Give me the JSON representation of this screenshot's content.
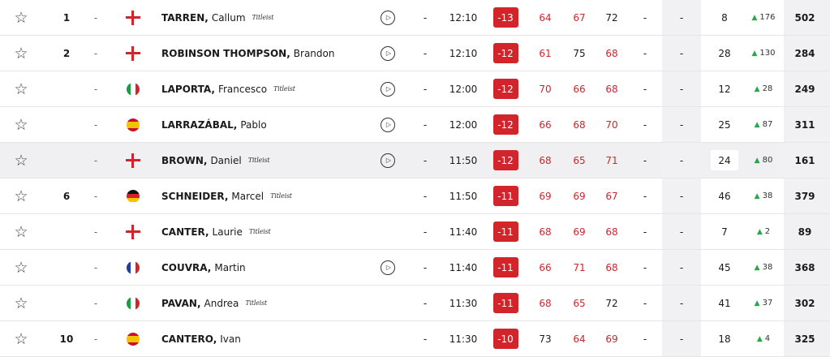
{
  "colors": {
    "score_badge": "#d2242b",
    "under_par": "#d2242b",
    "rank_up": "#27a74a",
    "highlight_row": "#f0f0f2"
  },
  "rows": [
    {
      "pos": "1",
      "move": "-",
      "flag": "england-flag-icon",
      "last": "TARREN,",
      "first": "Callum",
      "sponsor": "Titleist",
      "play": true,
      "thru": "-",
      "time": "12:10",
      "score": "-13",
      "r1": "64",
      "r2": "67",
      "r3": "72",
      "r1_red": true,
      "r2_red": true,
      "r3_red": false,
      "r4": "-",
      "tot": "-",
      "rank": "8",
      "rank_move": "176",
      "points": "502"
    },
    {
      "pos": "2",
      "move": "-",
      "flag": "england-flag-icon",
      "last": "ROBINSON THOMPSON,",
      "first": "Brandon",
      "sponsor": "",
      "play": true,
      "thru": "-",
      "time": "12:10",
      "score": "-12",
      "r1": "61",
      "r2": "75",
      "r3": "68",
      "r1_red": true,
      "r2_red": false,
      "r3_red": true,
      "r4": "-",
      "tot": "-",
      "rank": "28",
      "rank_move": "130",
      "points": "284"
    },
    {
      "pos": "",
      "move": "-",
      "flag": "italy-flag-icon",
      "last": "LAPORTA,",
      "first": "Francesco",
      "sponsor": "Titleist",
      "play": true,
      "thru": "-",
      "time": "12:00",
      "score": "-12",
      "r1": "70",
      "r2": "66",
      "r3": "68",
      "r1_red": true,
      "r2_red": true,
      "r3_red": true,
      "r4": "-",
      "tot": "-",
      "rank": "12",
      "rank_move": "28",
      "points": "249"
    },
    {
      "pos": "",
      "move": "-",
      "flag": "spain-flag-icon",
      "last": "LARRAZÁBAL,",
      "first": "Pablo",
      "sponsor": "",
      "play": true,
      "thru": "-",
      "time": "12:00",
      "score": "-12",
      "r1": "66",
      "r2": "68",
      "r3": "70",
      "r1_red": true,
      "r2_red": true,
      "r3_red": true,
      "r4": "-",
      "tot": "-",
      "rank": "25",
      "rank_move": "87",
      "points": "311"
    },
    {
      "pos": "",
      "move": "-",
      "flag": "england-flag-icon",
      "last": "BROWN,",
      "first": "Daniel",
      "sponsor": "Titleist",
      "play": true,
      "thru": "-",
      "time": "11:50",
      "score": "-12",
      "r1": "68",
      "r2": "65",
      "r3": "71",
      "r1_red": true,
      "r2_red": true,
      "r3_red": true,
      "r4": "-",
      "tot": "-",
      "rank": "24",
      "rank_move": "80",
      "points": "161",
      "highlight": true
    },
    {
      "pos": "6",
      "move": "-",
      "flag": "germany-flag-icon",
      "last": "SCHNEIDER,",
      "first": "Marcel",
      "sponsor": "Titleist",
      "play": false,
      "thru": "-",
      "time": "11:50",
      "score": "-11",
      "r1": "69",
      "r2": "69",
      "r3": "67",
      "r1_red": true,
      "r2_red": true,
      "r3_red": true,
      "r4": "-",
      "tot": "-",
      "rank": "46",
      "rank_move": "38",
      "points": "379"
    },
    {
      "pos": "",
      "move": "-",
      "flag": "england-flag-icon",
      "last": "CANTER,",
      "first": "Laurie",
      "sponsor": "Titleist",
      "play": false,
      "thru": "-",
      "time": "11:40",
      "score": "-11",
      "r1": "68",
      "r2": "69",
      "r3": "68",
      "r1_red": true,
      "r2_red": true,
      "r3_red": true,
      "r4": "-",
      "tot": "-",
      "rank": "7",
      "rank_move": "2",
      "points": "89"
    },
    {
      "pos": "",
      "move": "-",
      "flag": "france-flag-icon",
      "last": "COUVRA,",
      "first": "Martin",
      "sponsor": "",
      "play": true,
      "thru": "-",
      "time": "11:40",
      "score": "-11",
      "r1": "66",
      "r2": "71",
      "r3": "68",
      "r1_red": true,
      "r2_red": true,
      "r3_red": true,
      "r4": "-",
      "tot": "-",
      "rank": "45",
      "rank_move": "38",
      "points": "368"
    },
    {
      "pos": "",
      "move": "-",
      "flag": "italy-flag-icon",
      "last": "PAVAN,",
      "first": "Andrea",
      "sponsor": "Titleist",
      "play": false,
      "thru": "-",
      "time": "11:30",
      "score": "-11",
      "r1": "68",
      "r2": "65",
      "r3": "72",
      "r1_red": true,
      "r2_red": true,
      "r3_red": false,
      "r4": "-",
      "tot": "-",
      "rank": "41",
      "rank_move": "37",
      "points": "302"
    },
    {
      "pos": "10",
      "move": "-",
      "flag": "spain-flag-icon",
      "last": "CANTERO,",
      "first": "Ivan",
      "sponsor": "",
      "play": false,
      "thru": "-",
      "time": "11:30",
      "score": "-10",
      "r1": "73",
      "r2": "64",
      "r3": "69",
      "r1_red": false,
      "r2_red": true,
      "r3_red": true,
      "r4": "-",
      "tot": "-",
      "rank": "18",
      "rank_move": "4",
      "points": "325"
    }
  ]
}
